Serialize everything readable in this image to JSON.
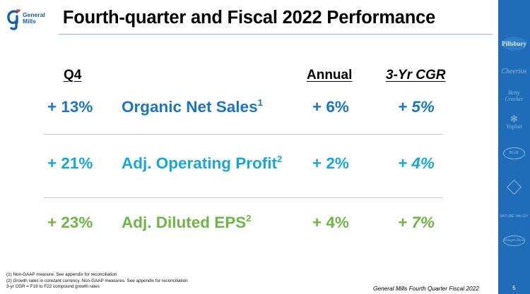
{
  "logo": {
    "line1": "General",
    "line2": "Mills"
  },
  "title": "Fourth-quarter and Fiscal 2022 Performance",
  "headers": {
    "q4": "Q4",
    "annual": "Annual",
    "cgr": "3-Yr CGR"
  },
  "rows": [
    {
      "q4": "+ 13%",
      "metric": "Organic Net Sales",
      "sup": "1",
      "annual": "+ 6%",
      "cgr": "+ 5%",
      "color": "#1a74c8"
    },
    {
      "q4": "+ 21%",
      "metric": "Adj. Operating Profit",
      "sup": "2",
      "annual": "+ 2%",
      "cgr": "+ 4%",
      "color": "#19a6d8"
    },
    {
      "q4": "+ 23%",
      "metric": "Adj. Diluted EPS",
      "sup": "2",
      "annual": "+ 4%",
      "cgr": "+ 7%",
      "color": "#6cb644"
    }
  ],
  "footnotes": [
    "(1) Non-GAAP measure.  See appendix for reconciliation",
    "(2) Growth rates in constant currency. Non-GAAP measures. See appendix for reconciliation",
    "3-yr CGR = F19 to F22 compound growth rates"
  ],
  "footer": "General Mills Fourth Quarter Fiscal 2022",
  "page_number": "5",
  "brand_band": {
    "color": "#1f6db8",
    "logos": [
      "Pillsbury",
      "Cheerios",
      "Betty Crocker",
      "Yoplait",
      "Blue Buffalo",
      "Old El Paso",
      "Nature Valley",
      "Häagen-Dazs"
    ]
  },
  "colors": {
    "title_rule": "#8fb4d4",
    "row_rule": "#c9c9c9"
  }
}
